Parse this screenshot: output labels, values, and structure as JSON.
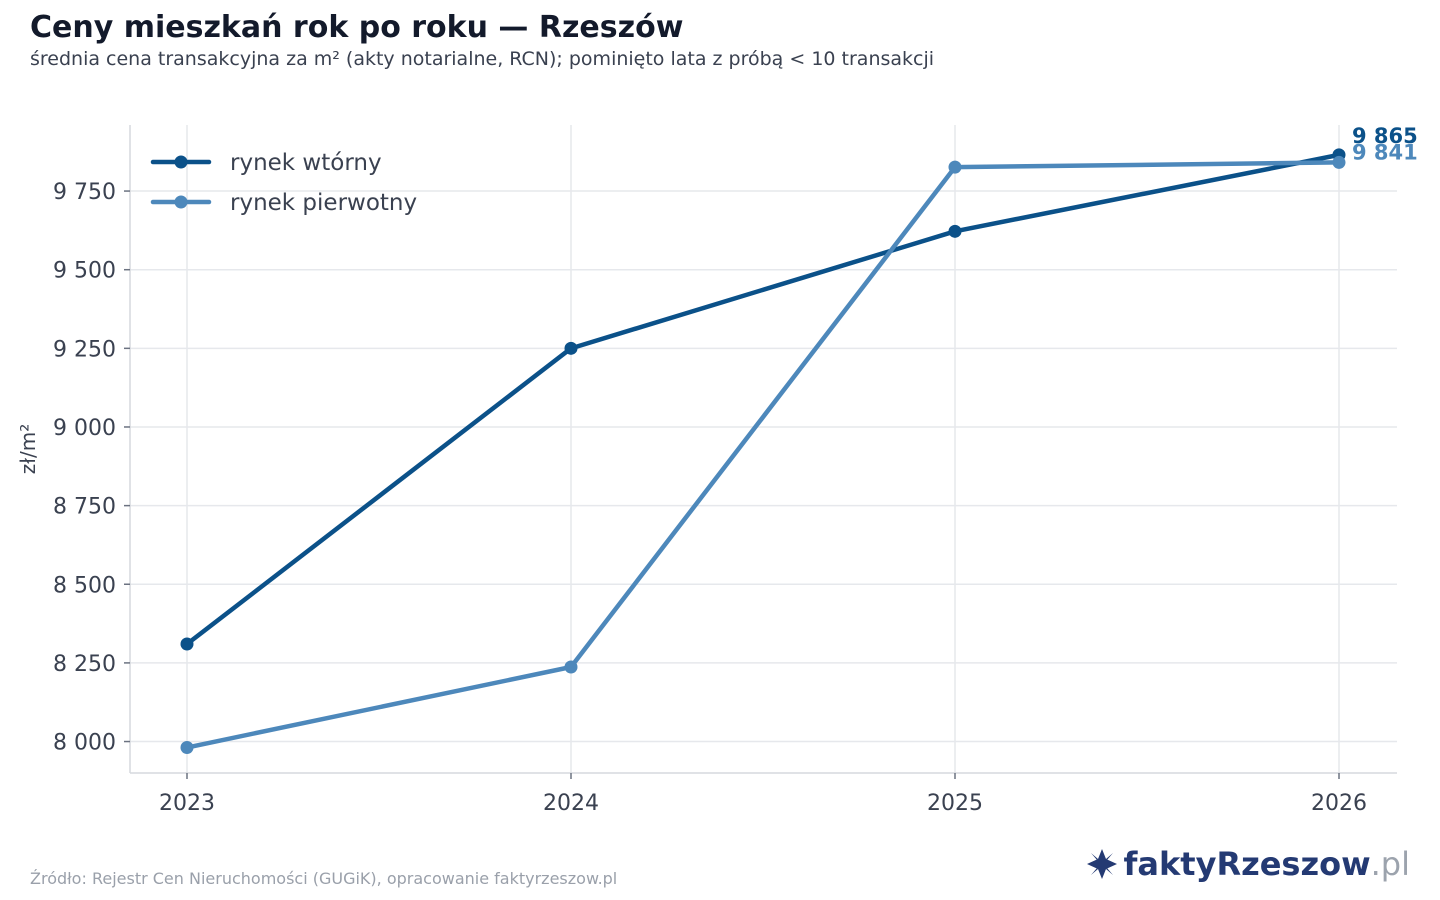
{
  "header": {
    "title": "Ceny mieszkań rok po roku — Rzeszów",
    "subtitle": "średnia cena transakcyjna za m² (akty notarialne, RCN); pominięto lata z próbą < 10 transakcji"
  },
  "footer": {
    "source": "Źródło: Rejestr Cen Nieruchomości (GUGiK), opracowanie faktyrzeszow.pl",
    "logo_main": "faktyRzeszow",
    "logo_tld": ".pl"
  },
  "colors": {
    "secondary_market": "#0b5189",
    "primary_market": "#4d88bb",
    "grid": "#e6e8ec",
    "logo": "#243a73"
  },
  "chart_data": {
    "type": "line",
    "title": "Ceny mieszkań rok po roku — Rzeszów",
    "ylabel": "zł/m²",
    "xlabel": "",
    "categories": [
      "2023",
      "2024",
      "2025",
      "2026"
    ],
    "x_tick_labels": [
      "2023",
      "2024",
      "2025",
      "2026"
    ],
    "ylim": [
      7900,
      9960
    ],
    "y_ticks": [
      8000,
      8250,
      8500,
      8750,
      9000,
      9250,
      9500,
      9750
    ],
    "y_tick_labels": [
      "8 000",
      "8 250",
      "8 500",
      "8 750",
      "9 000",
      "9 250",
      "9 500",
      "9 750"
    ],
    "grid": true,
    "legend_position": "top-left",
    "series": [
      {
        "name": "rynek wtórny",
        "color": "#0b5189",
        "values": [
          8310,
          9250,
          9622,
          9865
        ],
        "end_label": "9 865"
      },
      {
        "name": "rynek pierwotny",
        "color": "#4d88bb",
        "values": [
          7981,
          8237,
          9826,
          9841
        ],
        "end_label": "9 841"
      }
    ]
  }
}
